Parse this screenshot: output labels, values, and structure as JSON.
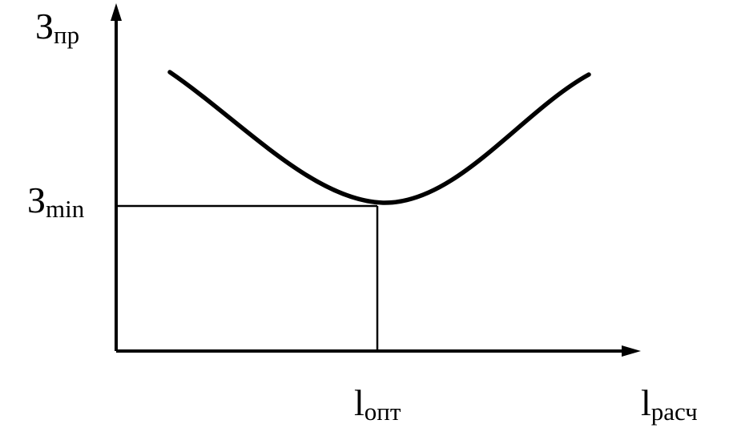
{
  "y_axis": {
    "symbol": "З",
    "subscript": "пр"
  },
  "min_level": {
    "symbol": "З",
    "subscript": "min"
  },
  "optimum": {
    "symbol": "l",
    "subscript": "опт"
  },
  "x_axis": {
    "symbol": "l",
    "subscript": "расч"
  }
}
